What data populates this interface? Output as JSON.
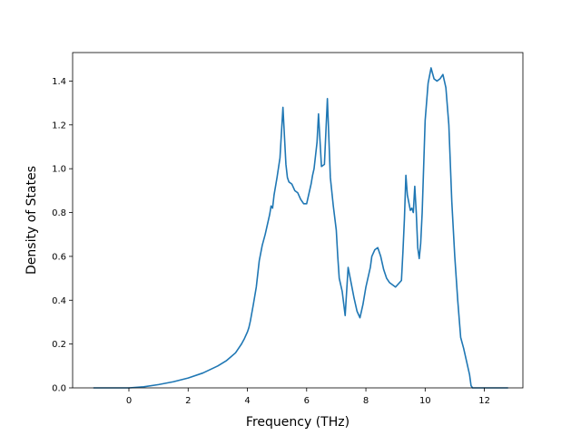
{
  "chart_data": {
    "type": "line",
    "title": "",
    "xlabel": "Frequency (THz)",
    "ylabel": "Density of States",
    "xlim": [
      -1.9,
      13.3
    ],
    "ylim": [
      0.0,
      1.53
    ],
    "xticks": [
      0,
      2,
      4,
      6,
      8,
      10,
      12
    ],
    "xtick_labels": [
      "0",
      "2",
      "4",
      "6",
      "8",
      "10",
      "12"
    ],
    "yticks": [
      0.0,
      0.2,
      0.4,
      0.6,
      0.8,
      1.0,
      1.2,
      1.4
    ],
    "ytick_labels": [
      "0.0",
      "0.2",
      "0.4",
      "0.6",
      "0.8",
      "1.0",
      "1.2",
      "1.4"
    ],
    "grid": false,
    "series": [
      {
        "color": "#1f77b4",
        "x": [
          -1.2,
          0.0,
          0.5,
          1.0,
          1.5,
          2.0,
          2.5,
          3.0,
          3.3,
          3.6,
          3.8,
          3.9,
          4.0,
          4.05,
          4.1,
          4.2,
          4.3,
          4.4,
          4.5,
          4.6,
          4.65,
          4.7,
          4.75,
          4.8,
          4.85,
          4.9,
          5.0,
          5.1,
          5.2,
          5.3,
          5.35,
          5.4,
          5.5,
          5.6,
          5.7,
          5.8,
          5.9,
          6.0,
          6.05,
          6.1,
          6.15,
          6.2,
          6.25,
          6.3,
          6.35,
          6.4,
          6.5,
          6.6,
          6.7,
          6.8,
          6.9,
          7.0,
          7.05,
          7.1,
          7.2,
          7.3,
          7.4,
          7.5,
          7.6,
          7.7,
          7.8,
          7.9,
          8.0,
          8.1,
          8.15,
          8.2,
          8.3,
          8.4,
          8.5,
          8.6,
          8.7,
          8.8,
          9.0,
          9.2,
          9.25,
          9.3,
          9.35,
          9.4,
          9.5,
          9.55,
          9.6,
          9.65,
          9.7,
          9.75,
          9.8,
          9.85,
          9.9,
          10.0,
          10.1,
          10.2,
          10.3,
          10.4,
          10.5,
          10.6,
          10.7,
          10.8,
          10.9,
          11.0,
          11.1,
          11.2,
          11.3,
          11.4,
          11.5,
          11.55,
          11.6,
          11.65,
          11.7,
          12.0,
          12.8
        ],
        "y": [
          0.0,
          0.0,
          0.005,
          0.015,
          0.028,
          0.045,
          0.068,
          0.1,
          0.125,
          0.16,
          0.2,
          0.225,
          0.255,
          0.275,
          0.305,
          0.38,
          0.46,
          0.58,
          0.65,
          0.7,
          0.73,
          0.76,
          0.79,
          0.83,
          0.82,
          0.88,
          0.96,
          1.05,
          1.28,
          1.02,
          0.96,
          0.94,
          0.93,
          0.9,
          0.89,
          0.86,
          0.84,
          0.84,
          0.87,
          0.9,
          0.93,
          0.97,
          1.0,
          1.06,
          1.12,
          1.25,
          1.01,
          1.02,
          1.32,
          0.96,
          0.83,
          0.72,
          0.6,
          0.5,
          0.44,
          0.33,
          0.55,
          0.48,
          0.41,
          0.35,
          0.32,
          0.38,
          0.46,
          0.52,
          0.55,
          0.6,
          0.63,
          0.64,
          0.6,
          0.54,
          0.5,
          0.48,
          0.46,
          0.49,
          0.62,
          0.77,
          0.97,
          0.88,
          0.81,
          0.82,
          0.8,
          0.92,
          0.8,
          0.64,
          0.59,
          0.66,
          0.8,
          1.22,
          1.39,
          1.46,
          1.41,
          1.4,
          1.41,
          1.43,
          1.37,
          1.2,
          0.85,
          0.6,
          0.4,
          0.23,
          0.18,
          0.12,
          0.06,
          0.01,
          0.0,
          0.0,
          0.0,
          0.0,
          0.0
        ]
      }
    ]
  }
}
